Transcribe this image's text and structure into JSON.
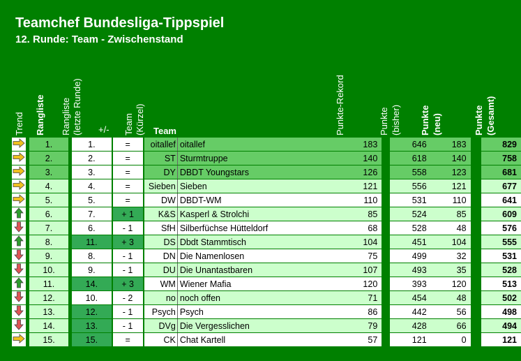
{
  "title": "Teamchef Bundesliga-Tippspiel",
  "subtitle": "12. Runde: Team - Zwischenstand",
  "headers": {
    "trend": "Trend",
    "rangliste": "Rangliste",
    "rangliste_letzte": "Rangliste",
    "rangliste_letzte2": "(letzte Runde)",
    "plusminus": "+/-",
    "team_kurz": "Team",
    "team_kurz2": "(Kürzel)",
    "team": "Team",
    "rekord": "Punkte-Rekord",
    "bisher": "Punkte",
    "bisher2": "(bisher)",
    "neu": "Punkte",
    "neu2": "(neu)",
    "gesamt": "Punkte",
    "gesamt2": "(Gesamt)"
  },
  "colors": {
    "up": "#2e9e2e",
    "down": "#e05555",
    "same": "#f0c020"
  },
  "rows": [
    {
      "trend": "same",
      "rank": "1.",
      "prev": "1.",
      "pm": "=",
      "kurz": "oitallef",
      "team": "oitallef",
      "rekord": "183",
      "bisher": "646",
      "neu": "183",
      "gesamt": "829"
    },
    {
      "trend": "same",
      "rank": "2.",
      "prev": "2.",
      "pm": "=",
      "kurz": "ST",
      "team": "Sturmtruppe",
      "rekord": "140",
      "bisher": "618",
      "neu": "140",
      "gesamt": "758"
    },
    {
      "trend": "same",
      "rank": "3.",
      "prev": "3.",
      "pm": "=",
      "kurz": "DY",
      "team": "DBDT Youngstars",
      "rekord": "126",
      "bisher": "558",
      "neu": "123",
      "gesamt": "681"
    },
    {
      "trend": "same",
      "rank": "4.",
      "prev": "4.",
      "pm": "=",
      "kurz": "Sieben",
      "team": "Sieben",
      "rekord": "121",
      "bisher": "556",
      "neu": "121",
      "gesamt": "677"
    },
    {
      "trend": "same",
      "rank": "5.",
      "prev": "5.",
      "pm": "=",
      "kurz": "DW",
      "team": "DBDT-WM",
      "rekord": "110",
      "bisher": "531",
      "neu": "110",
      "gesamt": "641"
    },
    {
      "trend": "up",
      "rank": "6.",
      "prev": "7.",
      "pm": "+ 1",
      "kurz": "K&S",
      "team": "Kasperl & Strolchi",
      "rekord": "85",
      "bisher": "524",
      "neu": "85",
      "gesamt": "609"
    },
    {
      "trend": "down",
      "rank": "7.",
      "prev": "6.",
      "pm": "- 1",
      "kurz": "SfH",
      "team": "Silberfüchse Hütteldorf",
      "rekord": "68",
      "bisher": "528",
      "neu": "48",
      "gesamt": "576"
    },
    {
      "trend": "up",
      "rank": "8.",
      "prev": "11.",
      "pm": "+ 3",
      "kurz": "DS",
      "team": "Dbdt Stammtisch",
      "rekord": "104",
      "bisher": "451",
      "neu": "104",
      "gesamt": "555"
    },
    {
      "trend": "down",
      "rank": "9.",
      "prev": "8.",
      "pm": "- 1",
      "kurz": "DN",
      "team": "Die Namenlosen",
      "rekord": "75",
      "bisher": "499",
      "neu": "32",
      "gesamt": "531"
    },
    {
      "trend": "down",
      "rank": "10.",
      "prev": "9.",
      "pm": "- 1",
      "kurz": "DU",
      "team": "Die Unantastbaren",
      "rekord": "107",
      "bisher": "493",
      "neu": "35",
      "gesamt": "528"
    },
    {
      "trend": "up",
      "rank": "11.",
      "prev": "14.",
      "pm": "+ 3",
      "kurz": "WM",
      "team": "Wiener Mafia",
      "rekord": "120",
      "bisher": "393",
      "neu": "120",
      "gesamt": "513"
    },
    {
      "trend": "down",
      "rank": "12.",
      "prev": "10.",
      "pm": "- 2",
      "kurz": "no",
      "team": "noch offen",
      "rekord": "71",
      "bisher": "454",
      "neu": "48",
      "gesamt": "502"
    },
    {
      "trend": "down",
      "rank": "13.",
      "prev": "12.",
      "pm": "- 1",
      "kurz": "Psych",
      "team": "Psych",
      "rekord": "86",
      "bisher": "442",
      "neu": "56",
      "gesamt": "498"
    },
    {
      "trend": "down",
      "rank": "14.",
      "prev": "13.",
      "pm": "- 1",
      "kurz": "DVg",
      "team": "Die Vergesslichen",
      "rekord": "79",
      "bisher": "428",
      "neu": "66",
      "gesamt": "494"
    },
    {
      "trend": "same",
      "rank": "15.",
      "prev": "15.",
      "pm": "=",
      "kurz": "CK",
      "team": "Chat Kartell",
      "rekord": "57",
      "bisher": "121",
      "neu": "0",
      "gesamt": "121"
    }
  ]
}
